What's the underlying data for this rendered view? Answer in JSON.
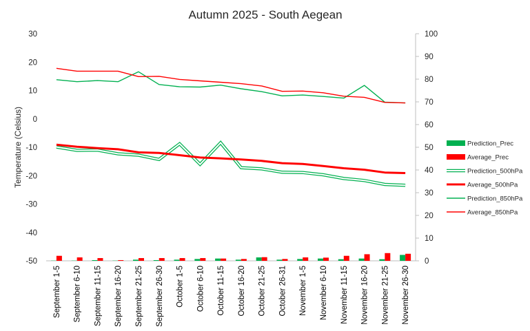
{
  "chart_data": {
    "type": "line",
    "title": "Autumn 2025 - South Aegean",
    "ylabel": "Temperature (Celsius)",
    "ylim": [
      -50,
      30
    ],
    "y_ticks": [
      30,
      20,
      10,
      0,
      -10,
      -20,
      -30,
      -40,
      -50
    ],
    "y2lim": [
      0,
      100
    ],
    "y2_ticks": [
      100,
      90,
      80,
      70,
      60,
      50,
      40,
      30,
      20,
      10,
      0
    ],
    "grid": false,
    "legend_position": "right",
    "categories": [
      "September 1-5",
      "September 6-10",
      "September 11-15",
      "September 16-20",
      "September 21-25",
      "September 26-30",
      "October 1-5",
      "October 6-10",
      "October 11-15",
      "October 16-20",
      "October 21-25",
      "October 26-31",
      "November 1-5",
      "November 6-10",
      "November 11-15",
      "November 16-20",
      "November 21-25",
      "November 26-30"
    ],
    "series": [
      {
        "name": "Prediction_Prec",
        "kind": "bar",
        "axis": "y2",
        "color": "#00b050",
        "values": [
          0.1,
          0.1,
          0.3,
          0.1,
          0.5,
          0.3,
          0.5,
          0.8,
          1.0,
          0.5,
          1.5,
          0.5,
          0.8,
          1.0,
          0.7,
          1.0,
          0.7,
          2.6
        ]
      },
      {
        "name": "Average_Prec",
        "kind": "bar",
        "axis": "y2",
        "color": "#ff0000",
        "values": [
          2.2,
          1.5,
          1.2,
          0.3,
          1.2,
          1.2,
          1.2,
          1.2,
          1.0,
          0.8,
          1.6,
          0.8,
          1.5,
          1.4,
          2.2,
          2.9,
          3.4,
          3.1
        ]
      },
      {
        "name": "Prediction_500hPa",
        "kind": "double-line",
        "axis": "y",
        "color": "#00b050",
        "values": [
          -9.9,
          -11.1,
          -11.0,
          -12.3,
          -12.8,
          -14.3,
          -8.8,
          -16.0,
          -8.4,
          -17.2,
          -17.6,
          -18.8,
          -18.9,
          -19.7,
          -21.0,
          -21.7,
          -23.1,
          -23.4
        ]
      },
      {
        "name": "Average_500hPa",
        "kind": "line",
        "axis": "y",
        "color": "#ff0000",
        "values": [
          -9.1,
          -9.8,
          -10.3,
          -10.7,
          -11.8,
          -12.0,
          -12.8,
          -13.6,
          -13.9,
          -14.3,
          -14.8,
          -15.6,
          -15.9,
          -16.6,
          -17.4,
          -17.9,
          -18.9,
          -19.1
        ]
      },
      {
        "name": "Prediction_850hPa",
        "kind": "line",
        "axis": "y",
        "color": "#00b050",
        "values": [
          13.8,
          13.1,
          13.5,
          13.1,
          16.6,
          12.1,
          11.3,
          11.2,
          11.9,
          10.6,
          9.6,
          8.1,
          8.4,
          7.9,
          7.3,
          11.8,
          5.9,
          5.6
        ]
      },
      {
        "name": "Average_850hPa",
        "kind": "line",
        "axis": "y",
        "color": "#ff0000",
        "values": [
          17.8,
          16.8,
          16.8,
          16.8,
          14.9,
          15.0,
          13.9,
          13.4,
          12.9,
          12.4,
          11.6,
          9.7,
          9.8,
          9.2,
          8.0,
          7.6,
          5.8,
          5.6
        ]
      }
    ]
  }
}
